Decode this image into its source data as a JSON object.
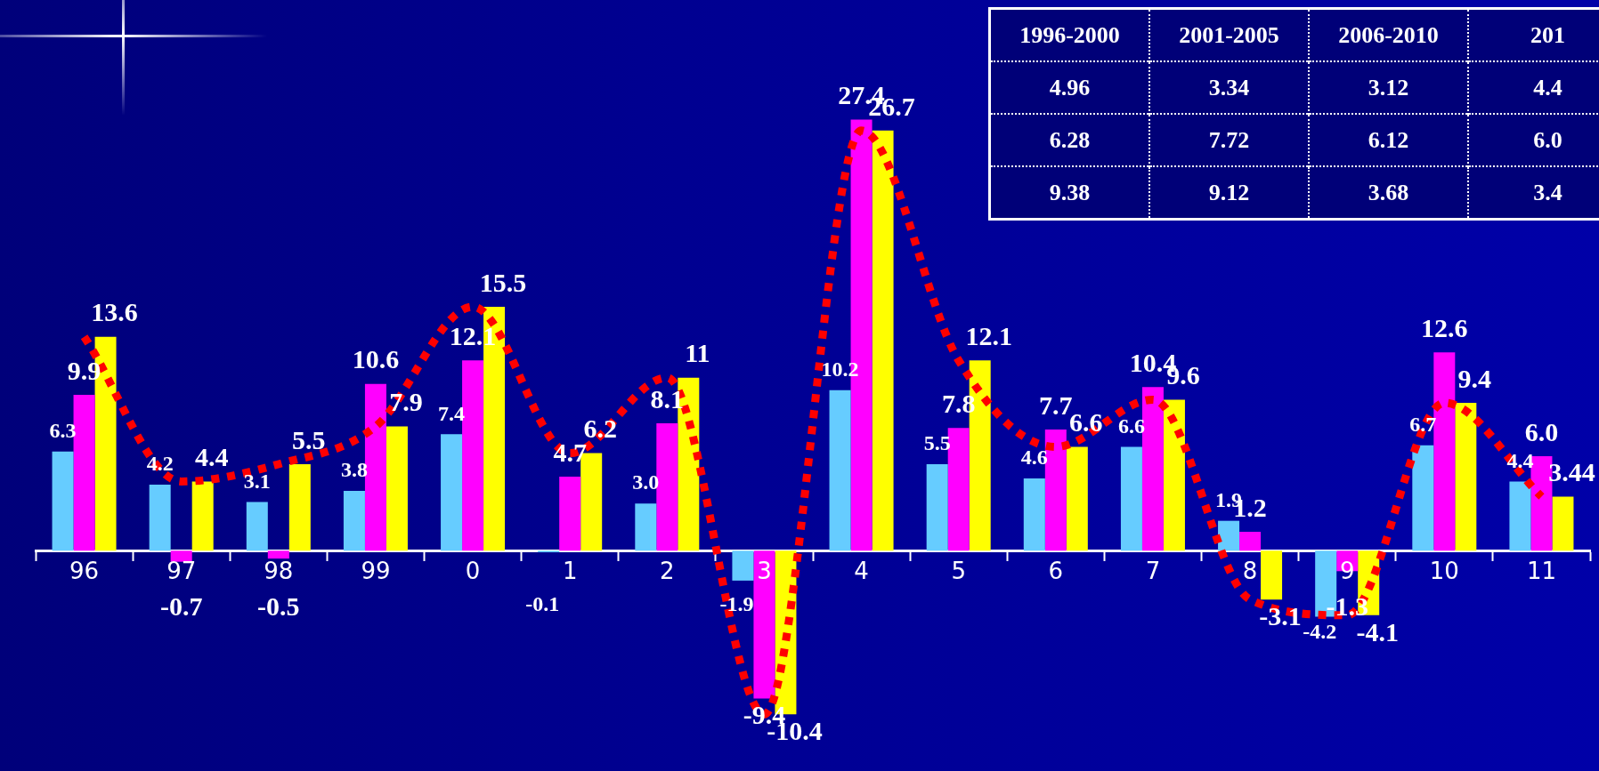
{
  "chart_data": [
    {
      "type": "bar",
      "categories": [
        "96",
        "97",
        "98",
        "99",
        "0",
        "1",
        "2",
        "3",
        "4",
        "5",
        "6",
        "7",
        "8",
        "9",
        "10",
        "11"
      ],
      "series": [
        {
          "color": "#66ccff",
          "values": [
            6.3,
            4.2,
            3.1,
            3.8,
            7.4,
            -0.1,
            3.0,
            -1.9,
            10.2,
            5.5,
            4.6,
            6.6,
            1.9,
            -4.2,
            6.7,
            4.4
          ],
          "value_labels": [
            "6.3",
            "4.2",
            "3.1",
            "3.8",
            "7.4",
            "-0.1",
            "3.0",
            "-1.9",
            "10.2",
            "5.5",
            "4.6",
            "6.6",
            "1.9",
            "-4.2",
            "6.7",
            "4.4"
          ]
        },
        {
          "color": "#ff00ff",
          "values": [
            9.9,
            -0.7,
            -0.5,
            10.6,
            12.1,
            4.7,
            8.1,
            -9.4,
            27.4,
            7.8,
            7.7,
            10.4,
            1.2,
            -1.3,
            12.6,
            6.0
          ],
          "value_labels": [
            "9.9",
            "-0.7",
            "-0.5",
            "10.6",
            "12.1",
            "4.7",
            "8.1",
            "-9.4",
            "27.4",
            "7.8",
            "7.7",
            "10.4",
            "1.2",
            "-1.3",
            "12.6",
            "6.0"
          ]
        },
        {
          "color": "#ffff00",
          "values": [
            13.6,
            4.4,
            5.5,
            7.9,
            15.5,
            6.2,
            11,
            -10.4,
            26.7,
            12.1,
            6.6,
            9.6,
            -3.1,
            -4.1,
            9.4,
            3.44
          ],
          "value_labels": [
            "13.6",
            "4.4",
            "5.5",
            "7.9",
            "15.5",
            "6.2",
            "11",
            "-10.4",
            "26.7",
            "12.1",
            "6.6",
            "9.6",
            "-3.1",
            "-4.1",
            "9.4",
            "3.44"
          ]
        },
        {
          "type": "line",
          "color": "#ff0000",
          "line_style": "dotted",
          "marker": "none",
          "values": [
            13.6,
            4.4,
            5.5,
            7.9,
            15.5,
            6.2,
            11,
            -10.4,
            26.7,
            12.1,
            6.6,
            9.6,
            -3.1,
            -4.1,
            9.4,
            3.44
          ]
        }
      ],
      "ylim": [
        -14,
        35
      ],
      "tick_labels": "x",
      "grid": false,
      "legend": false
    },
    {
      "type": "other",
      "annotations": [
        "1996-2000",
        "2001-2005",
        "2006-2010",
        "201",
        "4.96",
        "3.34",
        "3.12",
        "4.4",
        "6.28",
        "7.72",
        "6.12",
        "6.0",
        "9.38",
        "9.12",
        "3.68",
        "3.4"
      ]
    }
  ]
}
